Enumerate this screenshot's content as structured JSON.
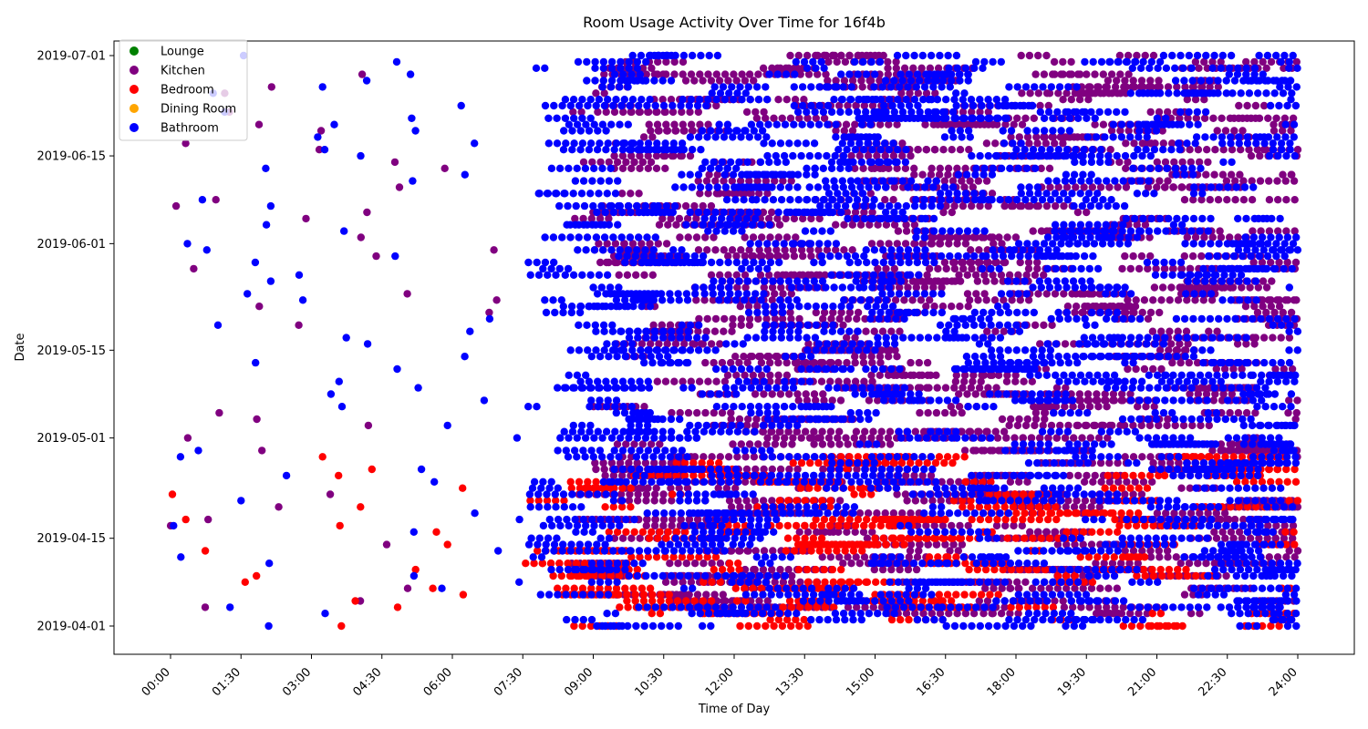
{
  "chart_data": {
    "type": "scatter",
    "title": "Room Usage Activity Over Time for 16f4b",
    "xlabel": "Time of Day",
    "ylabel": "Date",
    "x_ticks": [
      "00:00",
      "01:30",
      "03:00",
      "04:30",
      "06:00",
      "07:30",
      "09:00",
      "10:30",
      "12:00",
      "13:30",
      "15:00",
      "16:30",
      "18:00",
      "19:30",
      "21:00",
      "22:30",
      "24:00"
    ],
    "y_ticks": [
      "2019-04-01",
      "2019-04-15",
      "2019-05-01",
      "2019-05-15",
      "2019-06-01",
      "2019-06-15",
      "2019-07-01"
    ],
    "xlim_hours": [
      0,
      24
    ],
    "ylim_dates": [
      "2019-04-01",
      "2019-07-01"
    ],
    "legend_position": "upper-left",
    "series": [
      {
        "name": "Lounge",
        "color": "#008000",
        "active_dates": [],
        "core_hours": []
      },
      {
        "name": "Kitchen",
        "color": "#800080",
        "active_dates": [
          "2019-04-03",
          "2019-07-01"
        ],
        "core_hours": [
          8.5,
          24
        ]
      },
      {
        "name": "Bedroom",
        "color": "#ff0000",
        "active_dates": [
          "2019-04-01",
          "2019-04-28"
        ],
        "core_hours": [
          7.5,
          24
        ]
      },
      {
        "name": "Dining Room",
        "color": "#ffa500",
        "active_dates": [],
        "core_hours": []
      },
      {
        "name": "Bathroom",
        "color": "#0000ff",
        "active_dates": [
          "2019-04-01",
          "2019-07-01"
        ],
        "core_hours": [
          7.5,
          24
        ]
      }
    ],
    "grid": false
  }
}
